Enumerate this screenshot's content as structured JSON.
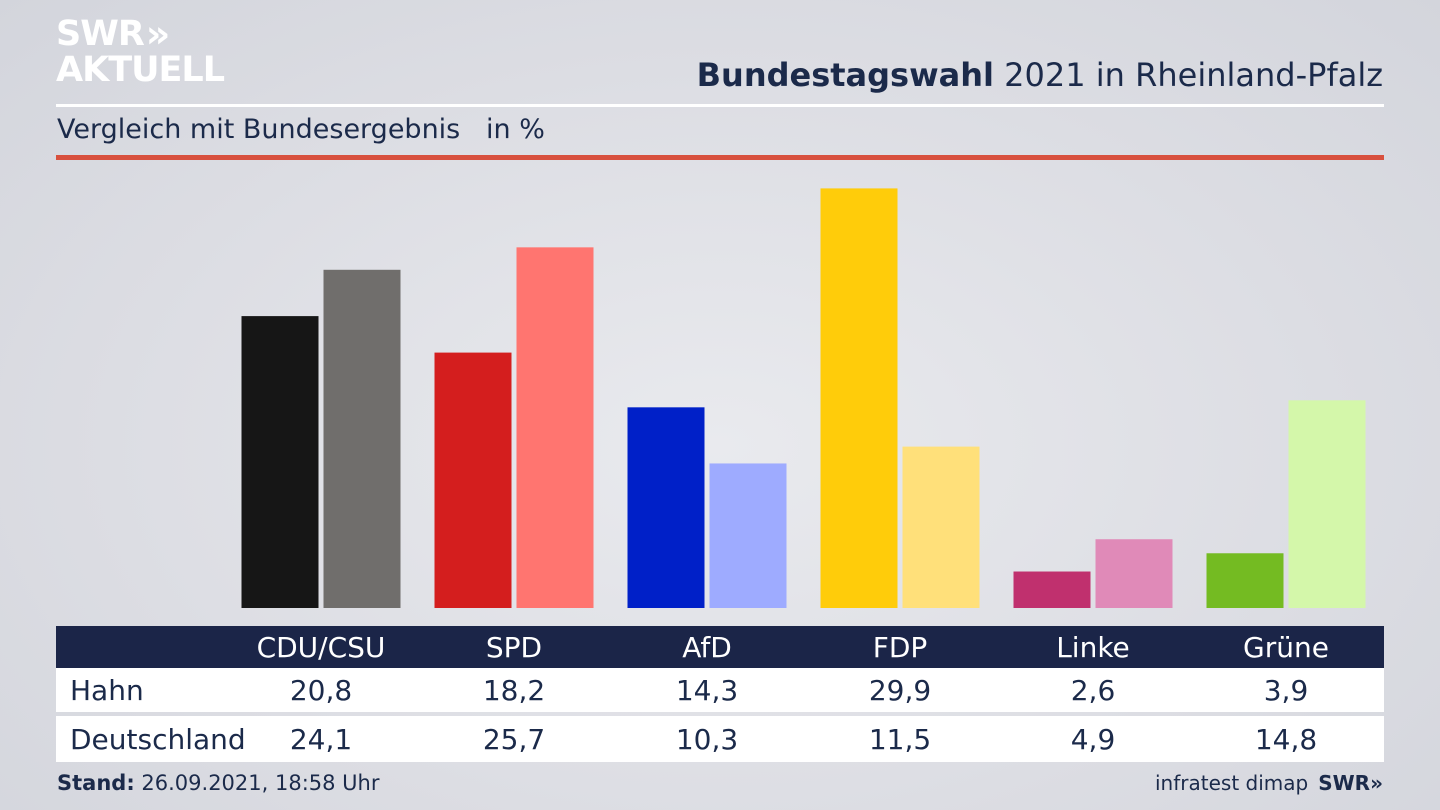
{
  "logo": {
    "line1": "SWR",
    "chevrons": "»",
    "line2": "AKTUELL"
  },
  "header": {
    "title_bold": "Bundestagswahl",
    "title_rest": " 2021 in Rheinland-Pfalz",
    "subtitle": "Vergleich mit Bundesergebnis   in %"
  },
  "colors": {
    "navy": "#1b2548",
    "red_rule": "#d8503e"
  },
  "chart_data": {
    "type": "bar",
    "categories": [
      "CDU/CSU",
      "SPD",
      "AfD",
      "FDP",
      "Linke",
      "Grüne"
    ],
    "series": [
      {
        "name": "Hahn",
        "values": [
          20.8,
          18.2,
          14.3,
          29.9,
          2.6,
          3.9
        ],
        "colors": [
          "#161616",
          "#d41e1e",
          "#0020c8",
          "#ffcc0a",
          "#c0306e",
          "#74bb22"
        ]
      },
      {
        "name": "Deutschland",
        "values": [
          24.1,
          25.7,
          10.3,
          11.5,
          4.9,
          14.8
        ],
        "colors": [
          "#706e6c",
          "#ff7570",
          "#9eabff",
          "#ffe07a",
          "#e08ab8",
          "#d4f7aa"
        ]
      }
    ],
    "ylim": [
      0,
      30
    ],
    "grid": false,
    "legend": "table-below"
  },
  "table": {
    "headers": [
      "CDU/CSU",
      "SPD",
      "AfD",
      "FDP",
      "Linke",
      "Grüne"
    ],
    "rows": [
      {
        "label": "Hahn",
        "values": [
          "20,8",
          "18,2",
          "14,3",
          "29,9",
          "2,6",
          "3,9"
        ]
      },
      {
        "label": "Deutschland",
        "values": [
          "24,1",
          "25,7",
          "10,3",
          "11,5",
          "4,9",
          "14,8"
        ]
      }
    ]
  },
  "footer": {
    "stand_label": "Stand:",
    "stand_value": " 26.09.2021, 18:58 Uhr",
    "source": "infratest dimap",
    "brand": "SWR»"
  }
}
